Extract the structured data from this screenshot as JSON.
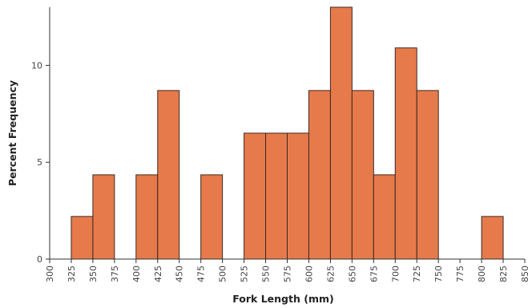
{
  "chart_data": {
    "type": "bar",
    "title": "",
    "xlabel": "Fork Length (mm)",
    "ylabel": "Percent Frequency",
    "xlim": [
      300,
      850
    ],
    "ylim": [
      0,
      13
    ],
    "bin_width": 25,
    "x_ticks": [
      300,
      325,
      350,
      375,
      400,
      425,
      450,
      475,
      500,
      525,
      550,
      575,
      600,
      625,
      650,
      675,
      700,
      725,
      750,
      775,
      800,
      825,
      850
    ],
    "y_ticks": [
      0,
      5,
      10
    ],
    "grid": false,
    "bars": [
      {
        "bin_start": 325,
        "bin_end": 350,
        "value": 2.2
      },
      {
        "bin_start": 350,
        "bin_end": 375,
        "value": 4.35
      },
      {
        "bin_start": 400,
        "bin_end": 425,
        "value": 4.35
      },
      {
        "bin_start": 425,
        "bin_end": 450,
        "value": 8.7
      },
      {
        "bin_start": 475,
        "bin_end": 500,
        "value": 4.35
      },
      {
        "bin_start": 525,
        "bin_end": 550,
        "value": 6.5
      },
      {
        "bin_start": 550,
        "bin_end": 575,
        "value": 6.5
      },
      {
        "bin_start": 575,
        "bin_end": 600,
        "value": 6.5
      },
      {
        "bin_start": 600,
        "bin_end": 625,
        "value": 8.7
      },
      {
        "bin_start": 625,
        "bin_end": 650,
        "value": 13.0
      },
      {
        "bin_start": 650,
        "bin_end": 675,
        "value": 8.7
      },
      {
        "bin_start": 675,
        "bin_end": 700,
        "value": 4.35
      },
      {
        "bin_start": 700,
        "bin_end": 725,
        "value": 10.9
      },
      {
        "bin_start": 725,
        "bin_end": 750,
        "value": 8.7
      },
      {
        "bin_start": 800,
        "bin_end": 825,
        "value": 2.2
      }
    ],
    "colors": {
      "bar_fill": "#e67a4b",
      "bar_edge": "#3b2a22",
      "axis": "#333333"
    }
  }
}
